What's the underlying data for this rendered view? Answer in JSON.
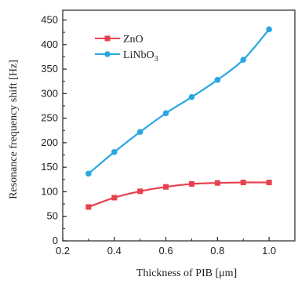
{
  "chart_data": {
    "type": "line",
    "xlabel": "Thickness of PIB [μm]",
    "ylabel": "Resonance frequency shift [Hz]",
    "xlim": [
      0.2,
      1.1
    ],
    "ylim": [
      0,
      470
    ],
    "x_ticks": [
      "0.2",
      "0.4",
      "0.6",
      "0.8",
      "1.0"
    ],
    "x_tick_values": [
      0.2,
      0.4,
      0.6,
      0.8,
      1.0
    ],
    "y_ticks": [
      "0",
      "50",
      "100",
      "150",
      "200",
      "250",
      "300",
      "350",
      "400",
      "450"
    ],
    "y_tick_values": [
      0,
      50,
      100,
      150,
      200,
      250,
      300,
      350,
      400,
      450
    ],
    "grid": false,
    "legend_position": "top-left",
    "x": [
      0.3,
      0.4,
      0.5,
      0.6,
      0.7,
      0.8,
      0.9,
      1.0
    ],
    "series": [
      {
        "name": "ZnO",
        "marker": "square",
        "color": "#e8414e",
        "values": [
          69,
          88,
          101,
          110,
          116,
          118,
          119,
          119
        ]
      },
      {
        "name": "LiNbO3",
        "name_main": "LiNbO",
        "name_sub": "3",
        "marker": "circle",
        "color": "#2aa7e1",
        "values": [
          137,
          181,
          222,
          260,
          293,
          328,
          369,
          431
        ]
      }
    ]
  }
}
